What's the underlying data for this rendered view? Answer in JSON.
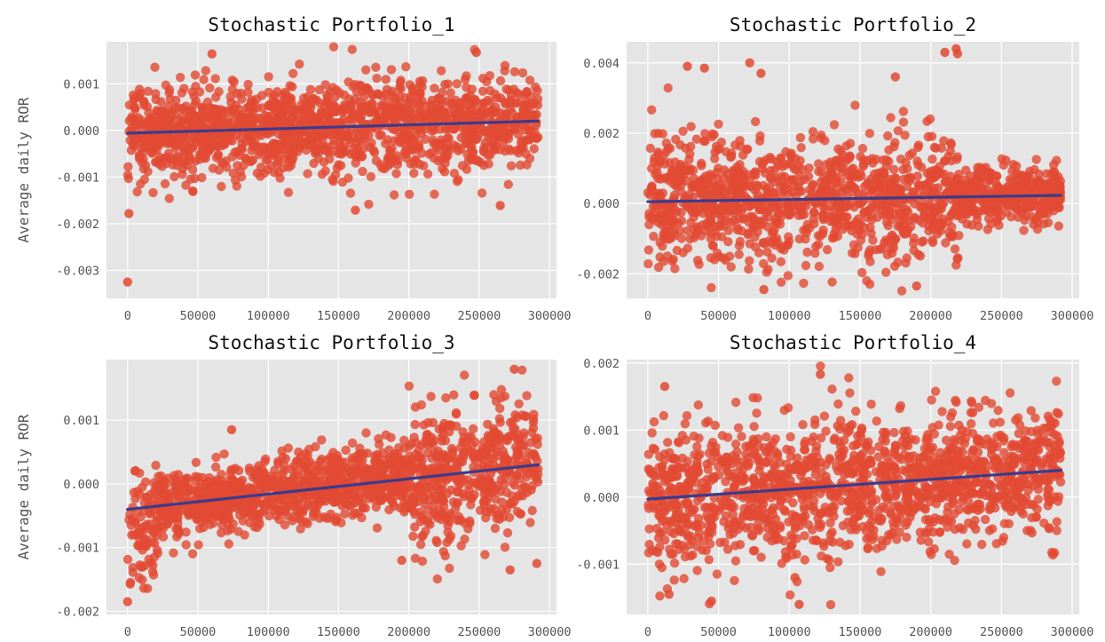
{
  "figure": {
    "ylabel": "Average daily ROR",
    "colors": {
      "panel_bg": "#e5e5e5",
      "grid": "#ffffff",
      "points": "#e24a33",
      "trend": "#3b3b8c",
      "tick_text": "#555555",
      "title_text": "#111111"
    }
  },
  "chart_data": [
    {
      "type": "scatter",
      "title": "Stochastic Portfolio_1",
      "xlabel": "",
      "ylabel": "Average daily ROR",
      "xlim": [
        -15000,
        305000
      ],
      "ylim": [
        -0.0036,
        0.0019
      ],
      "xticks": [
        0,
        50000,
        100000,
        150000,
        200000,
        250000,
        300000
      ],
      "yticks": [
        -0.003,
        -0.002,
        -0.001,
        0.0,
        0.001
      ],
      "xtick_labels": [
        "0",
        "50000",
        "100000",
        "150000",
        "200000",
        "250000",
        "300000"
      ],
      "ytick_labels": [
        "-0.003",
        "-0.002",
        "-0.001",
        "0.000",
        "0.001"
      ],
      "grid": true,
      "x_range": [
        0,
        292000
      ],
      "point_count": 1500,
      "trend": {
        "x": [
          0,
          292000
        ],
        "y": [
          -6e-05,
          0.0002
        ]
      },
      "series": [
        {
          "segments": [
            {
              "x": [
                0,
                146000
              ],
              "mean": [
                -6e-05,
                7e-05
              ],
              "sd": [
                0.00048,
                0.00048
              ]
            },
            {
              "x": [
                146000,
                292000
              ],
              "mean": [
                7e-05,
                0.0002
              ],
              "sd": [
                0.00052,
                0.00052
              ]
            }
          ]
        }
      ],
      "outliers": [
        {
          "x": 0,
          "y": -0.00325
        },
        {
          "x": 1000,
          "y": -0.00178
        },
        {
          "x": 162000,
          "y": -0.00171
        },
        {
          "x": 265000,
          "y": -0.00161
        },
        {
          "x": 60000,
          "y": 0.00164
        },
        {
          "x": 248000,
          "y": 0.00167
        }
      ]
    },
    {
      "type": "scatter",
      "title": "Stochastic Portfolio_2",
      "xlabel": "",
      "ylabel": "",
      "xlim": [
        -15000,
        305000
      ],
      "ylim": [
        -0.0027,
        0.0046
      ],
      "xticks": [
        0,
        50000,
        100000,
        150000,
        200000,
        250000,
        300000
      ],
      "yticks": [
        -0.002,
        0.0,
        0.002,
        0.004
      ],
      "xtick_labels": [
        "0",
        "50000",
        "100000",
        "150000",
        "200000",
        "250000",
        "300000"
      ],
      "ytick_labels": [
        "-0.002",
        "0.000",
        "0.002",
        "0.004"
      ],
      "grid": true,
      "x_range": [
        0,
        292000
      ],
      "point_count": 1500,
      "trend": {
        "x": [
          0,
          292000
        ],
        "y": [
          5e-05,
          0.00023
        ]
      },
      "series": [
        {
          "segments": [
            {
              "x": [
                0,
                220000
              ],
              "mean": [
                5e-05,
                0.00018
              ],
              "sd": [
                0.0009,
                0.0009
              ]
            },
            {
              "x": [
                220000,
                292000
              ],
              "mean": [
                0.00018,
                0.00023
              ],
              "sd": [
                0.0004,
                0.0004
              ]
            }
          ]
        }
      ],
      "outliers": [
        {
          "x": 218000,
          "y": 0.0044
        },
        {
          "x": 219000,
          "y": 0.00426
        },
        {
          "x": 210000,
          "y": 0.0043
        },
        {
          "x": 72000,
          "y": 0.004
        },
        {
          "x": 28000,
          "y": 0.0039
        },
        {
          "x": 40000,
          "y": 0.00385
        },
        {
          "x": 80000,
          "y": 0.0037
        },
        {
          "x": 175000,
          "y": 0.0036
        },
        {
          "x": 82000,
          "y": -0.00245
        },
        {
          "x": 190000,
          "y": -0.00235
        }
      ]
    },
    {
      "type": "scatter",
      "title": "Stochastic Portfolio_3",
      "xlabel": "",
      "ylabel": "Average daily ROR",
      "xlim": [
        -15000,
        305000
      ],
      "ylim": [
        -0.00205,
        0.00195
      ],
      "xticks": [
        0,
        50000,
        100000,
        150000,
        200000,
        250000,
        300000
      ],
      "yticks": [
        -0.002,
        -0.001,
        0.0,
        0.001
      ],
      "xtick_labels": [
        "0",
        "50000",
        "100000",
        "150000",
        "200000",
        "250000",
        "300000"
      ],
      "ytick_labels": [
        "-0.002",
        "-0.001",
        "0.000",
        "0.001"
      ],
      "grid": true,
      "x_range": [
        0,
        292000
      ],
      "point_count": 1500,
      "trend": {
        "x": [
          0,
          292000
        ],
        "y": [
          -0.0004,
          0.0003
        ]
      },
      "series": [
        {
          "segments": [
            {
              "x": [
                0,
                22000
              ],
              "mean": [
                -0.00075,
                -0.00065
              ],
              "sd": [
                0.0005,
                0.0005
              ]
            },
            {
              "x": [
                22000,
                200000
              ],
              "mean": [
                -0.00032,
                0.00012
              ],
              "sd": [
                0.00026,
                0.00026
              ]
            },
            {
              "x": [
                200000,
                292000
              ],
              "mean": [
                0.00012,
                0.0003
              ],
              "sd": [
                0.0005,
                0.0005
              ]
            }
          ]
        }
      ],
      "outliers": [
        {
          "x": 275000,
          "y": 0.0018
        },
        {
          "x": 0,
          "y": -0.00185
        },
        {
          "x": 195000,
          "y": -0.0012
        },
        {
          "x": 74000,
          "y": 0.00085
        },
        {
          "x": 272000,
          "y": -0.00135
        },
        {
          "x": 291000,
          "y": -0.00125
        }
      ]
    },
    {
      "type": "scatter",
      "title": "Stochastic Portfolio_4",
      "xlabel": "",
      "ylabel": "",
      "xlim": [
        -15000,
        305000
      ],
      "ylim": [
        -0.00175,
        0.00205
      ],
      "xticks": [
        0,
        50000,
        100000,
        150000,
        200000,
        250000,
        300000
      ],
      "yticks": [
        -0.001,
        0.0,
        0.001,
        0.002
      ],
      "xtick_labels": [
        "0",
        "50000",
        "100000",
        "150000",
        "200000",
        "250000",
        "300000"
      ],
      "ytick_labels": [
        "-0.001",
        "0.000",
        "0.001",
        "0.002"
      ],
      "grid": true,
      "x_range": [
        0,
        292000
      ],
      "point_count": 1500,
      "trend": {
        "x": [
          0,
          292000
        ],
        "y": [
          -3e-05,
          0.0004
        ]
      },
      "series": [
        {
          "segments": [
            {
              "x": [
                0,
                146000
              ],
              "mean": [
                -3e-05,
                0.00018
              ],
              "sd": [
                0.00055,
                0.00055
              ]
            },
            {
              "x": [
                146000,
                292000
              ],
              "mean": [
                0.00018,
                0.0004
              ],
              "sd": [
                0.00045,
                0.00045
              ]
            }
          ]
        }
      ],
      "outliers": [
        {
          "x": 122000,
          "y": 0.00183
        },
        {
          "x": 12000,
          "y": 0.00165
        },
        {
          "x": 107000,
          "y": -0.0016
        },
        {
          "x": 45000,
          "y": -0.00155
        },
        {
          "x": 15000,
          "y": -0.00145
        },
        {
          "x": 104000,
          "y": -0.0012
        }
      ]
    }
  ]
}
